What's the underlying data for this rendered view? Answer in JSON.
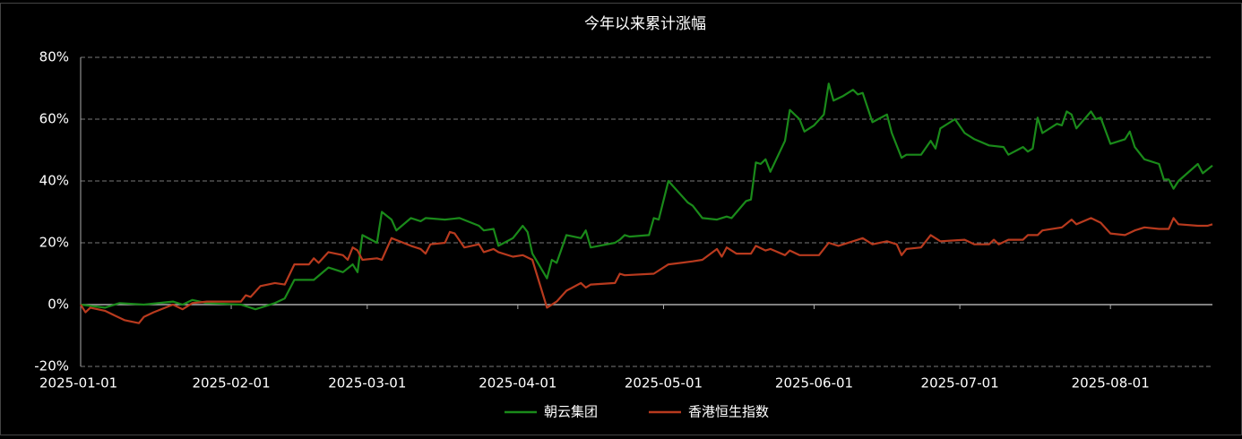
{
  "chart_data": {
    "type": "line",
    "title": "今年以来累计涨幅",
    "xlim": [
      "2025-01-01",
      "2025-08-22"
    ],
    "xticks": [
      "2025-01-01",
      "2025-02-01",
      "2025-03-01",
      "2025-04-01",
      "2025-05-01",
      "2025-06-01",
      "2025-07-01",
      "2025-08-01"
    ],
    "ylim": [
      -20,
      80
    ],
    "yticks": [
      {
        "value": -20,
        "label": "-20%"
      },
      {
        "value": 0,
        "label": "0%"
      },
      {
        "value": 20,
        "label": "20%"
      },
      {
        "value": 40,
        "label": "40%"
      },
      {
        "value": 60,
        "label": "60%"
      },
      {
        "value": 80,
        "label": "80%"
      }
    ],
    "grid": true,
    "series": [
      {
        "name": "朝云集团",
        "color": "#1a8a1a",
        "x": [
          "2025-01-01",
          "2025-01-06",
          "2025-01-09",
          "2025-01-14",
          "2025-01-20",
          "2025-01-22",
          "2025-01-24",
          "2025-01-27",
          "2025-02-03",
          "2025-02-06",
          "2025-02-10",
          "2025-02-12",
          "2025-02-14",
          "2025-02-18",
          "2025-02-21",
          "2025-02-24",
          "2025-02-26",
          "2025-02-27",
          "2025-02-28",
          "2025-03-03",
          "2025-03-04",
          "2025-03-06",
          "2025-03-07",
          "2025-03-10",
          "2025-03-12",
          "2025-03-13",
          "2025-03-17",
          "2025-03-20",
          "2025-03-24",
          "2025-03-25",
          "2025-03-27",
          "2025-03-28",
          "2025-03-31",
          "2025-04-01",
          "2025-04-02",
          "2025-04-03",
          "2025-04-04",
          "2025-04-07",
          "2025-04-08",
          "2025-04-09",
          "2025-04-11",
          "2025-04-14",
          "2025-04-15",
          "2025-04-16",
          "2025-04-21",
          "2025-04-22",
          "2025-04-23",
          "2025-04-24",
          "2025-04-28",
          "2025-04-29",
          "2025-04-30",
          "2025-05-02",
          "2025-05-06",
          "2025-05-07",
          "2025-05-09",
          "2025-05-12",
          "2025-05-14",
          "2025-05-15",
          "2025-05-18",
          "2025-05-19",
          "2025-05-20",
          "2025-05-21",
          "2025-05-22",
          "2025-05-23",
          "2025-05-26",
          "2025-05-27",
          "2025-05-29",
          "2025-05-30",
          "2025-06-01",
          "2025-06-03",
          "2025-06-04",
          "2025-06-05",
          "2025-06-07",
          "2025-06-09",
          "2025-06-10",
          "2025-06-11",
          "2025-06-13",
          "2025-06-16",
          "2025-06-17",
          "2025-06-19",
          "2025-06-20",
          "2025-06-23",
          "2025-06-25",
          "2025-06-26",
          "2025-06-27",
          "2025-06-30",
          "2025-07-02",
          "2025-07-04",
          "2025-07-07",
          "2025-07-10",
          "2025-07-11",
          "2025-07-14",
          "2025-07-15",
          "2025-07-16",
          "2025-07-17",
          "2025-07-18",
          "2025-07-21",
          "2025-07-22",
          "2025-07-23",
          "2025-07-24",
          "2025-07-25",
          "2025-07-28",
          "2025-07-29",
          "2025-07-30",
          "2025-08-01",
          "2025-08-04",
          "2025-08-05",
          "2025-08-06",
          "2025-08-08",
          "2025-08-11",
          "2025-08-12",
          "2025-08-13",
          "2025-08-14",
          "2025-08-15",
          "2025-08-19",
          "2025-08-20",
          "2025-08-22"
        ],
        "values": [
          0,
          -1,
          0.5,
          0,
          1,
          0,
          1.5,
          0.5,
          0,
          -1.5,
          0.5,
          2,
          8,
          8,
          12,
          10.5,
          13,
          10.5,
          22.5,
          20,
          30,
          27.5,
          24,
          28,
          27,
          28,
          27.5,
          28,
          25.5,
          24,
          24.5,
          19,
          21.5,
          23.5,
          25.5,
          23.5,
          16.5,
          8.5,
          14.5,
          13.5,
          22.5,
          21.5,
          24,
          18.5,
          20,
          21,
          22.5,
          22,
          22.5,
          28,
          27.5,
          40,
          33,
          32,
          28,
          27.5,
          28.5,
          28,
          33.5,
          34,
          46,
          45.5,
          47,
          43,
          53,
          63,
          60,
          56,
          58,
          61.5,
          71.5,
          66,
          67.5,
          69.5,
          68,
          68.5,
          59,
          61.5,
          55.5,
          47.5,
          48.5,
          48.5,
          53,
          50.5,
          57,
          60,
          55.5,
          53.5,
          51.5,
          51,
          48.5,
          51,
          49.5,
          50.5,
          60.5,
          55.5,
          58.5,
          58,
          62.5,
          61.5,
          57,
          62.5,
          60,
          60.5,
          52,
          53.5,
          56,
          51,
          47,
          45.5,
          40.5,
          40.5,
          37.5,
          40,
          45.5,
          42.5,
          45
        ]
      },
      {
        "name": "香港恒生指数",
        "color": "#b83a1e",
        "x": [
          "2025-01-01",
          "2025-01-02",
          "2025-01-03",
          "2025-01-06",
          "2025-01-08",
          "2025-01-10",
          "2025-01-13",
          "2025-01-14",
          "2025-01-16",
          "2025-01-20",
          "2025-01-22",
          "2025-01-24",
          "2025-01-27",
          "2025-02-03",
          "2025-02-04",
          "2025-02-05",
          "2025-02-07",
          "2025-02-10",
          "2025-02-12",
          "2025-02-14",
          "2025-02-17",
          "2025-02-18",
          "2025-02-19",
          "2025-02-21",
          "2025-02-24",
          "2025-02-25",
          "2025-02-26",
          "2025-02-27",
          "2025-02-28",
          "2025-03-03",
          "2025-03-04",
          "2025-03-06",
          "2025-03-10",
          "2025-03-12",
          "2025-03-13",
          "2025-03-14",
          "2025-03-17",
          "2025-03-18",
          "2025-03-19",
          "2025-03-21",
          "2025-03-24",
          "2025-03-25",
          "2025-03-27",
          "2025-03-28",
          "2025-03-31",
          "2025-04-02",
          "2025-04-04",
          "2025-04-07",
          "2025-04-09",
          "2025-04-11",
          "2025-04-14",
          "2025-04-15",
          "2025-04-16",
          "2025-04-21",
          "2025-04-22",
          "2025-04-23",
          "2025-04-29",
          "2025-05-02",
          "2025-05-07",
          "2025-05-09",
          "2025-05-12",
          "2025-05-13",
          "2025-05-14",
          "2025-05-16",
          "2025-05-19",
          "2025-05-20",
          "2025-05-22",
          "2025-05-23",
          "2025-05-26",
          "2025-05-27",
          "2025-05-29",
          "2025-06-02",
          "2025-06-04",
          "2025-06-06",
          "2025-06-09",
          "2025-06-11",
          "2025-06-13",
          "2025-06-16",
          "2025-06-18",
          "2025-06-19",
          "2025-06-20",
          "2025-06-23",
          "2025-06-25",
          "2025-06-27",
          "2025-07-02",
          "2025-07-04",
          "2025-07-07",
          "2025-07-08",
          "2025-07-09",
          "2025-07-11",
          "2025-07-14",
          "2025-07-15",
          "2025-07-17",
          "2025-07-18",
          "2025-07-22",
          "2025-07-24",
          "2025-07-25",
          "2025-07-28",
          "2025-07-30",
          "2025-08-01",
          "2025-08-04",
          "2025-08-06",
          "2025-08-08",
          "2025-08-11",
          "2025-08-13",
          "2025-08-14",
          "2025-08-15",
          "2025-08-19",
          "2025-08-21",
          "2025-08-22"
        ],
        "values": [
          0,
          -2.5,
          -1,
          -2,
          -3.5,
          -5,
          -6,
          -4,
          -2.5,
          0,
          -1.5,
          0.5,
          1,
          1,
          3,
          2.5,
          6,
          7,
          6.5,
          13,
          13,
          15,
          13.5,
          17,
          16,
          14.5,
          18.5,
          17.5,
          14.5,
          15,
          14.5,
          21.5,
          19,
          18,
          16.5,
          19.5,
          20,
          23.5,
          23,
          18.5,
          19.5,
          17,
          18,
          17,
          15.5,
          16,
          14.5,
          -1,
          1,
          4.5,
          7,
          5.5,
          6.5,
          7,
          10,
          9.5,
          10,
          13,
          14,
          14.5,
          18,
          15.5,
          18.5,
          16.5,
          16.5,
          19,
          17.5,
          18,
          16,
          17.5,
          16,
          16,
          20,
          19,
          20.5,
          21.5,
          19.5,
          20.5,
          19.5,
          16,
          18,
          18.5,
          22.5,
          20.5,
          21,
          19.5,
          19.5,
          21,
          19.5,
          21,
          21,
          22.5,
          22.5,
          24,
          25,
          27.5,
          26,
          28,
          26.5,
          23,
          22.5,
          24,
          25,
          24.5,
          24.5,
          28,
          26,
          25.5,
          25.5,
          26
        ]
      }
    ]
  }
}
